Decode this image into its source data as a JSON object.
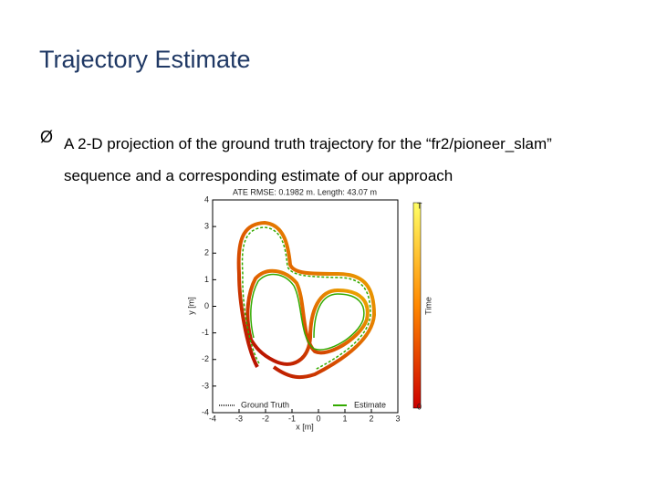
{
  "slide": {
    "title": "Trajectory Estimate",
    "bullet": "A 2-D projection of the ground truth trajectory for the “fr2/pioneer_slam” sequence and a corresponding estimate of our approach",
    "figure": {
      "title": "ATE RMSE: 0.1982 m.  Length: 43.07 m",
      "xlabel": "x [m]",
      "ylabel": "y [m]",
      "xlim": [
        -4,
        3
      ],
      "ylim": [
        -4,
        4
      ],
      "xticks": [
        -4,
        -3,
        -2,
        -1,
        0,
        1,
        2,
        3
      ],
      "yticks": [
        -4,
        -3,
        -2,
        -1,
        0,
        1,
        2,
        3,
        4
      ],
      "legend": [
        "Ground Truth",
        "Estimate"
      ],
      "colorbar": {
        "label": "Time",
        "top": "T",
        "bottom": "0"
      }
    }
  }
}
